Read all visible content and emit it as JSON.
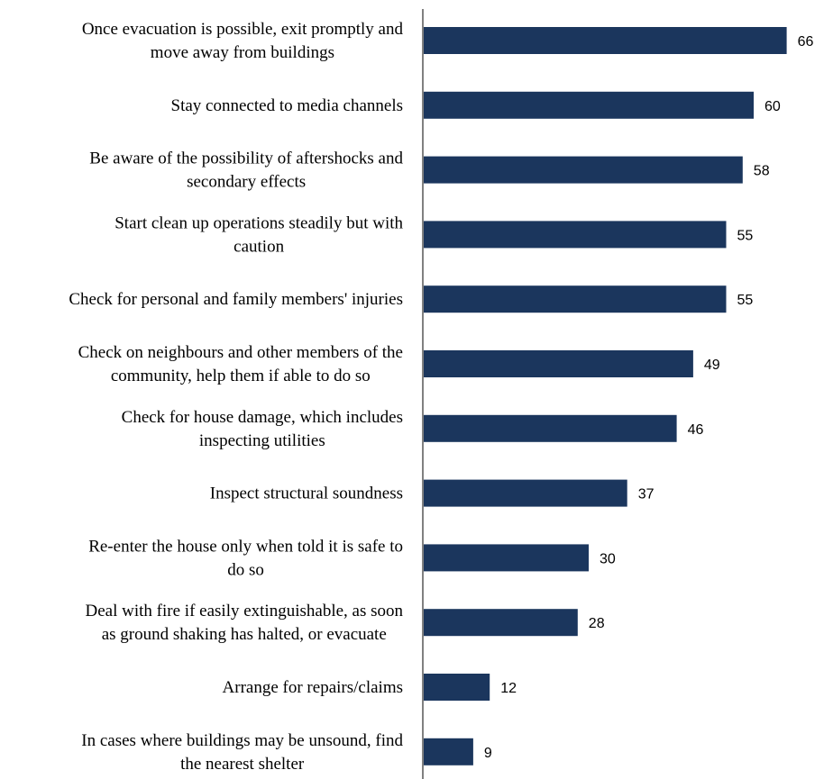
{
  "chart_data": {
    "type": "bar",
    "orientation": "horizontal",
    "categories": [
      [
        "Once evacuation is possible, exit promptly and",
        "move away from buildings"
      ],
      [
        "Stay connected to media channels"
      ],
      [
        "Be aware of the possibility of aftershocks and",
        "secondary effects"
      ],
      [
        "Start clean up operations steadily but with",
        "caution"
      ],
      [
        "Check for personal and family members' injuries"
      ],
      [
        "Check on neighbours and other members of the",
        "community, help them if able to do so"
      ],
      [
        "Check for house damage, which includes",
        "inspecting utilities"
      ],
      [
        "Inspect structural soundness"
      ],
      [
        "Re-enter the house only when told it is safe to",
        "do so"
      ],
      [
        "Deal with fire if easily extinguishable, as soon",
        "as ground shaking has halted, or evacuate"
      ],
      [
        "Arrange for repairs/claims"
      ],
      [
        "In cases where buildings may be unsound, find",
        "the nearest shelter"
      ]
    ],
    "values": [
      66,
      60,
      58,
      55,
      55,
      49,
      46,
      37,
      30,
      28,
      12,
      9
    ],
    "bar_color": "#1b365d",
    "title": "",
    "xlabel": "",
    "ylabel": "",
    "grid": false,
    "legend": "none"
  }
}
